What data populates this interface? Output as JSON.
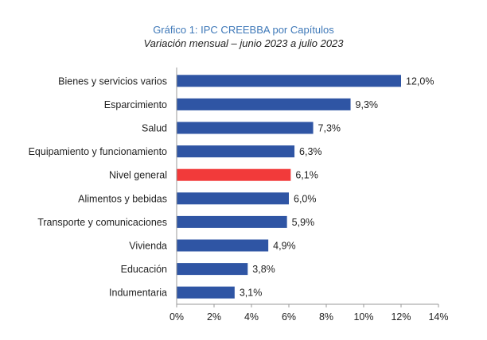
{
  "chart_data": {
    "type": "bar",
    "orientation": "horizontal",
    "title": "Gráfico 1: IPC CREEBBA por Capítulos",
    "subtitle": "Variación mensual – junio 2023 a julio 2023",
    "categories": [
      "Bienes y servicios varios",
      "Esparcimiento",
      "Salud",
      "Equipamiento y funcionamiento",
      "Nivel general",
      "Alimentos y bebidas",
      "Transporte y comunicaciones",
      "Vivienda",
      "Educación",
      "Indumentaria"
    ],
    "values": [
      12.0,
      9.3,
      7.3,
      6.3,
      6.1,
      6.0,
      5.9,
      4.9,
      3.8,
      3.1
    ],
    "value_labels": [
      "12,0%",
      "9,3%",
      "7,3%",
      "6,3%",
      "6,1%",
      "6,0%",
      "5,9%",
      "4,9%",
      "3,8%",
      "3,1%"
    ],
    "xlim": [
      0,
      14
    ],
    "x_ticks": [
      "0%",
      "2%",
      "4%",
      "6%",
      "8%",
      "10%",
      "12%",
      "14%"
    ],
    "highlight_category": "Nivel general",
    "colors": {
      "bar": "#2f55a4",
      "highlight": "#f23a3a",
      "title": "#3e78b8"
    },
    "grid": false,
    "legend": "none"
  }
}
